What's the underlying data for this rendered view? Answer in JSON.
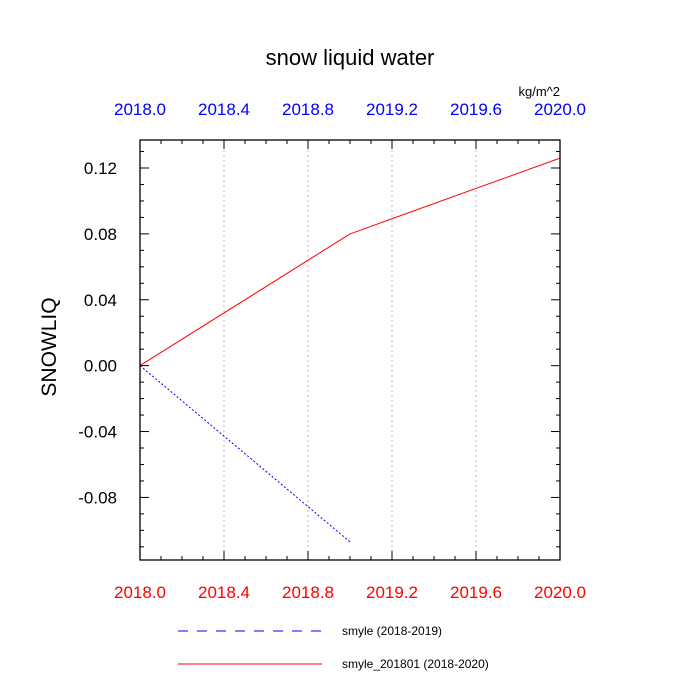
{
  "chart_data": {
    "type": "line",
    "title": "snow liquid water",
    "units": "kg/m^2",
    "ylabel": "SNOWLIQ",
    "xlabel": "",
    "xlim": [
      2018.0,
      2020.0
    ],
    "ylim": [
      -0.118,
      0.137
    ],
    "x_ticks": [
      2018.0,
      2018.4,
      2018.8,
      2019.2,
      2019.6,
      2020.0
    ],
    "x_tick_labels": [
      "2018.0",
      "2018.4",
      "2018.8",
      "2019.2",
      "2019.6",
      "2020.0"
    ],
    "y_ticks": [
      -0.08,
      -0.04,
      0.0,
      0.04,
      0.08,
      0.12
    ],
    "y_tick_labels": [
      "-0.08",
      "-0.04",
      "0.00",
      "0.04",
      "0.08",
      "0.12"
    ],
    "top_tick_color": "#0000ff",
    "bottom_tick_color": "#ff0000",
    "vertical_grid": true,
    "legend_position": "bottom",
    "series": [
      {
        "name": "smyle (2018-2019)",
        "x": [
          2018.0,
          2019.0
        ],
        "y": [
          0.0,
          -0.107
        ],
        "color": "#0000ff",
        "dash": "dashed"
      },
      {
        "name": "smyle_201801 (2018-2020)",
        "x": [
          2018.0,
          2019.0,
          2020.0
        ],
        "y": [
          0.0,
          0.08,
          0.126
        ],
        "color": "#ff0000",
        "dash": "solid"
      }
    ]
  }
}
